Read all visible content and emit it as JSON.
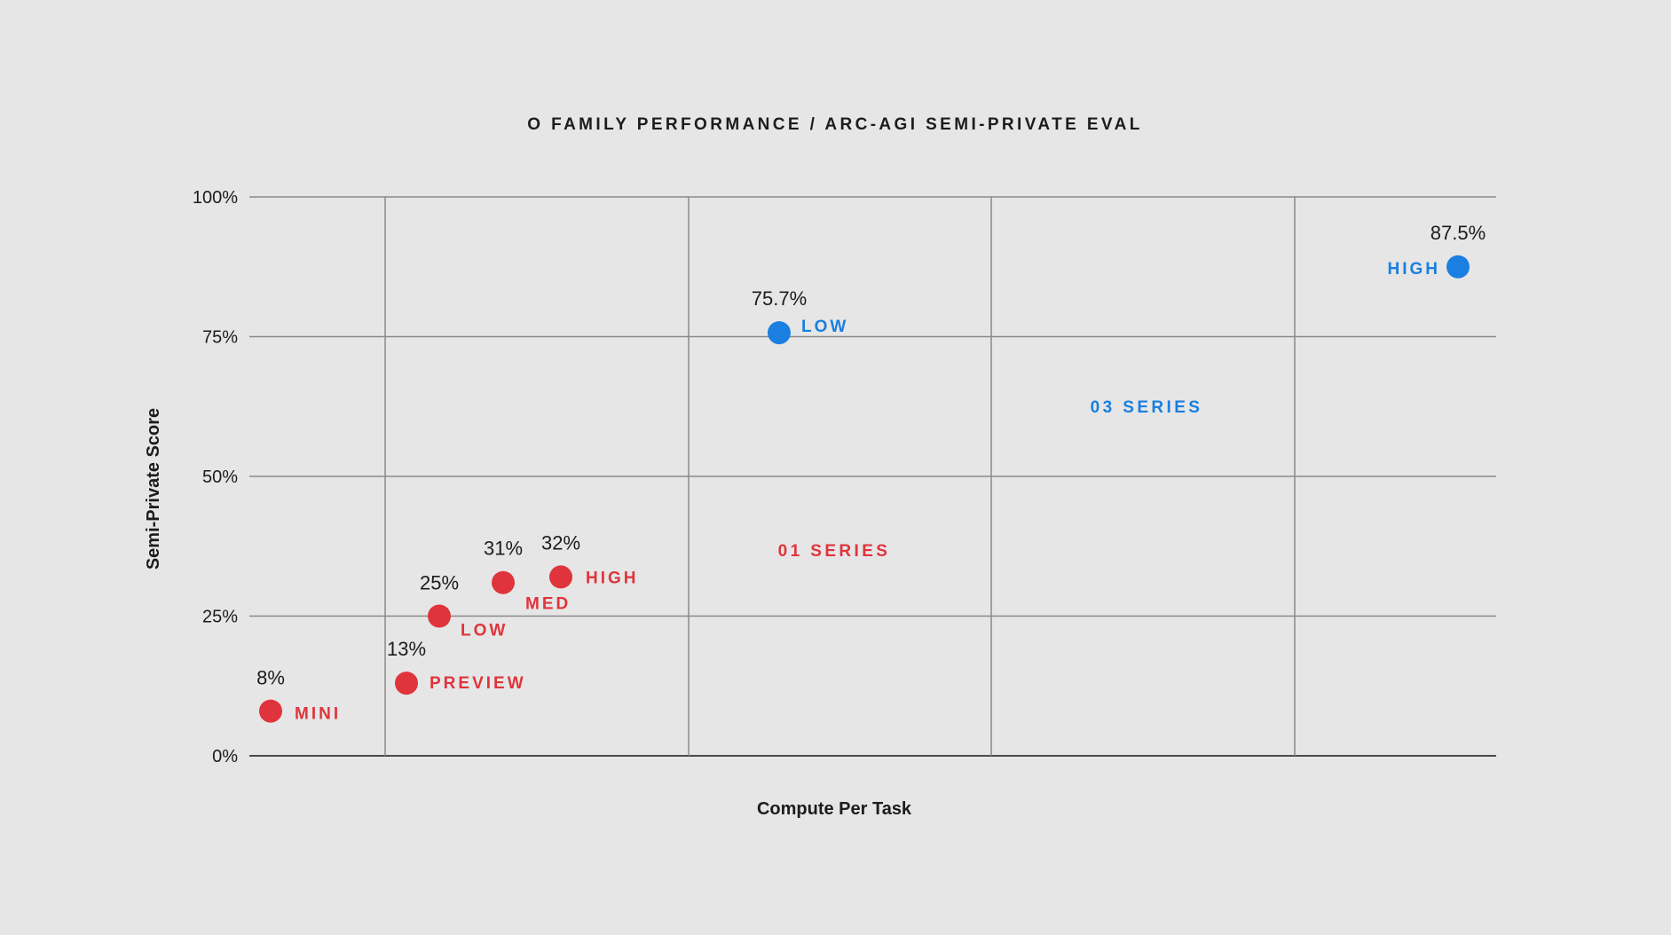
{
  "colors": {
    "background": "#e6e6e6",
    "o1_series": "#e0343c",
    "o3_series": "#1a7fe0",
    "text": "#1c1c1c",
    "grid": "#8a8a8a"
  },
  "chart_data": {
    "type": "scatter",
    "title": "O FAMILY PERFORMANCE / ARC-AGI SEMI-PRIVATE EVAL",
    "xlabel": "Compute Per Task",
    "ylabel": "Semi-Private Score",
    "ylim": [
      0,
      100
    ],
    "y_ticks": [
      {
        "value": 0,
        "label": "0%"
      },
      {
        "value": 25,
        "label": "25%"
      },
      {
        "value": 50,
        "label": "50%"
      },
      {
        "value": 75,
        "label": "75%"
      },
      {
        "value": 100,
        "label": "100%"
      }
    ],
    "x_axis_ticks_shown": false,
    "grid": true,
    "series": [
      {
        "name": "01 SERIES",
        "color": "#e0343c",
        "points": [
          {
            "label": "MINI",
            "value": 8,
            "value_label": "8%"
          },
          {
            "label": "PREVIEW",
            "value": 13,
            "value_label": "13%"
          },
          {
            "label": "LOW",
            "value": 25,
            "value_label": "25%"
          },
          {
            "label": "MED",
            "value": 31,
            "value_label": "31%"
          },
          {
            "label": "HIGH",
            "value": 32,
            "value_label": "32%"
          }
        ]
      },
      {
        "name": "03 SERIES",
        "color": "#1a7fe0",
        "points": [
          {
            "label": "LOW",
            "value": 75.7,
            "value_label": "75.7%"
          },
          {
            "label": "HIGH",
            "value": 87.5,
            "value_label": "87.5%"
          }
        ]
      }
    ]
  }
}
